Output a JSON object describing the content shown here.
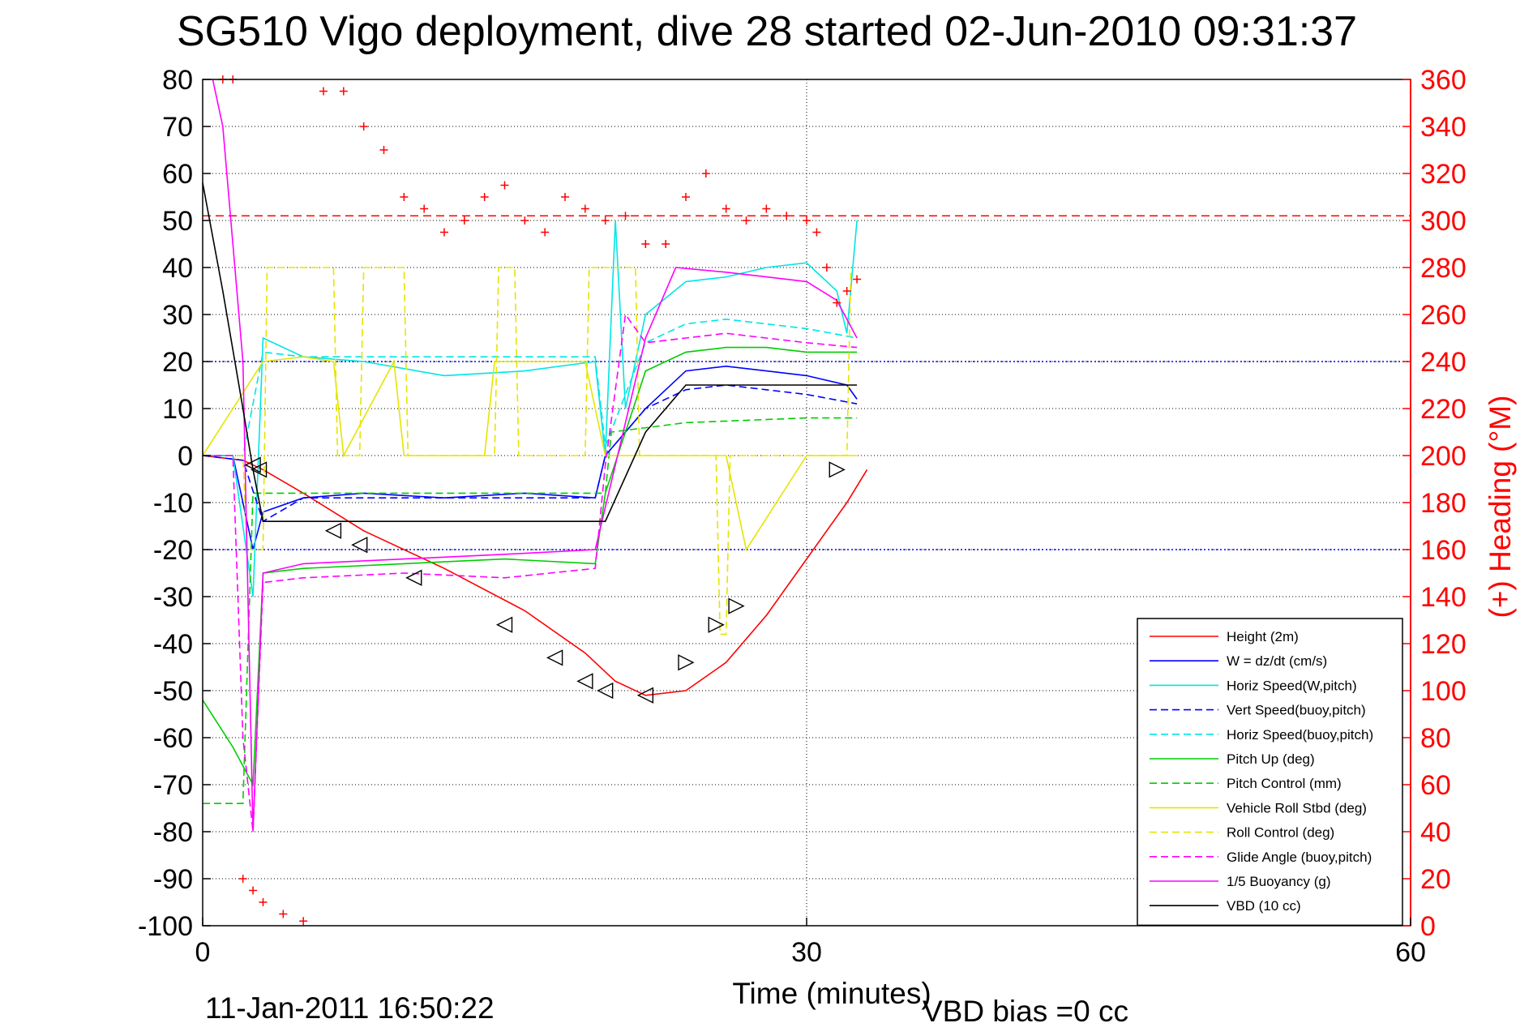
{
  "chart_data": {
    "type": "line",
    "title": "SG510 Vigo deployment, dive 28 started 02-Jun-2010 09:31:37",
    "xlabel": "Time (minutes)",
    "ylabel_right": "(+) Heading (°M)",
    "footer_left": "11-Jan-2011 16:50:22",
    "footer_right": "VBD bias =0 cc",
    "xlim": [
      0,
      60
    ],
    "ylim": [
      -100,
      80
    ],
    "ylim_right": [
      0,
      360
    ],
    "x_ticks": [
      0,
      30,
      60
    ],
    "y_ticks": [
      80,
      70,
      60,
      50,
      40,
      30,
      20,
      10,
      0,
      -10,
      -20,
      -30,
      -40,
      -50,
      -60,
      -70,
      -80,
      -90,
      -100
    ],
    "y_ticks_right": [
      360,
      340,
      320,
      300,
      280,
      260,
      240,
      220,
      200,
      180,
      160,
      140,
      120,
      100,
      80,
      60,
      40,
      20,
      0
    ],
    "grid": true,
    "legend_position": "bottom-right",
    "reference_lines": [
      {
        "axis": "right",
        "value": 302,
        "color": "#ff0000",
        "style": "dashed"
      },
      {
        "axis": "left",
        "value": 20,
        "color": "#0000ff",
        "style": "dotted"
      },
      {
        "axis": "left",
        "value": -20,
        "color": "#0000ff",
        "style": "dotted"
      }
    ],
    "series": [
      {
        "name": "Height (2m)",
        "color": "#ff0000",
        "style": "solid",
        "x": [
          0,
          2,
          3,
          5,
          8,
          12,
          16,
          19,
          20.5,
          22,
          24,
          26,
          28,
          30,
          32,
          33
        ],
        "y": [
          0,
          -1,
          -3,
          -8,
          -16,
          -24,
          -33,
          -42,
          -48,
          -51,
          -50,
          -44,
          -34,
          -22,
          -10,
          -3
        ]
      },
      {
        "name": "W = dz/dt (cm/s)",
        "color": "#0000ff",
        "style": "solid",
        "x": [
          0,
          1.5,
          2.5,
          3,
          5,
          8,
          12,
          16,
          19.5,
          20,
          22,
          24,
          26,
          28,
          30,
          32,
          32.5
        ],
        "y": [
          0,
          0,
          -20,
          -12,
          -9,
          -8,
          -9,
          -8,
          -9,
          0,
          10,
          18,
          19,
          18,
          17,
          15,
          12
        ]
      },
      {
        "name": "Horiz Speed(W,pitch)",
        "color": "#00e5e5",
        "style": "solid",
        "x": [
          0,
          1.5,
          2.5,
          3,
          5,
          8,
          12,
          16,
          19.5,
          20,
          20.5,
          21,
          22,
          24,
          26,
          28,
          30,
          31.5,
          32,
          32.5
        ],
        "y": [
          0,
          0,
          -30,
          25,
          21,
          20,
          17,
          18,
          20,
          0,
          50,
          10,
          30,
          37,
          38,
          40,
          41,
          35,
          26,
          50
        ]
      },
      {
        "name": "Vert Speed(buoy,pitch)",
        "color": "#0000ff",
        "style": "dashed",
        "x": [
          0,
          2,
          3,
          5,
          10,
          15,
          19.5,
          20,
          22,
          24,
          26,
          28,
          30,
          32.5
        ],
        "y": [
          0,
          -1,
          -14,
          -9,
          -9,
          -9,
          -9,
          0,
          10,
          14,
          15,
          14,
          13,
          11
        ]
      },
      {
        "name": "Horiz Speed(buoy,pitch)",
        "color": "#00e5e5",
        "style": "dashed",
        "x": [
          0,
          2,
          3,
          5,
          10,
          15,
          19.5,
          20,
          22,
          24,
          26,
          28,
          30,
          32.5
        ],
        "y": [
          0,
          0,
          22,
          21,
          21,
          21,
          21,
          2,
          24,
          28,
          29,
          28,
          27,
          25
        ]
      },
      {
        "name": "Pitch Up (deg)",
        "color": "#00cc00",
        "style": "solid",
        "x": [
          0,
          1.5,
          2.5,
          3,
          5,
          10,
          15,
          19.5,
          20,
          22,
          24,
          26,
          28,
          30,
          32.5
        ],
        "y": [
          -52,
          -62,
          -70,
          -25,
          -24,
          -23,
          -22,
          -23,
          -8,
          18,
          22,
          23,
          23,
          22,
          22
        ]
      },
      {
        "name": "Pitch Control (mm)",
        "color": "#00cc00",
        "style": "dashed",
        "x": [
          0,
          2,
          2.5,
          3,
          20,
          20.3,
          24,
          30,
          32.5
        ],
        "y": [
          -74,
          -74,
          -8,
          -8,
          -8,
          5,
          7,
          8,
          8
        ]
      },
      {
        "name": "Vehicle Roll Stbd (deg)",
        "color": "#e5e500",
        "style": "solid",
        "x": [
          0,
          1.5,
          3,
          5,
          6.5,
          7,
          9.5,
          10,
          14,
          14.5,
          19,
          20,
          24,
          26,
          27,
          30,
          32.5
        ],
        "y": [
          0,
          10,
          20,
          21,
          20,
          0,
          20,
          0,
          0,
          20,
          20,
          0,
          0,
          0,
          -20,
          0,
          0
        ]
      },
      {
        "name": "Roll Control (deg)",
        "color": "#e5e500",
        "style": "dashed",
        "x": [
          0,
          2,
          2.2,
          3,
          3.2,
          6.5,
          6.7,
          7.8,
          8,
          10,
          10.2,
          14.5,
          14.7,
          15.5,
          15.7,
          19,
          19.2,
          21.5,
          21.7,
          23.5,
          23.7,
          25.5,
          25.7,
          26,
          26.2,
          32,
          32.2
        ],
        "y": [
          0,
          0,
          -20,
          -20,
          40,
          40,
          0,
          0,
          40,
          40,
          0,
          0,
          40,
          40,
          0,
          0,
          40,
          40,
          0,
          0,
          0,
          0,
          -38,
          -38,
          0,
          0,
          40
        ]
      },
      {
        "name": "Glide Angle (buoy,pitch)",
        "color": "#ff00ff",
        "style": "dashed",
        "x": [
          0,
          1.5,
          2,
          2.5,
          3,
          5,
          10,
          15,
          19.5,
          20,
          21,
          22,
          24,
          26,
          28,
          30,
          32.5
        ],
        "y": [
          0,
          0,
          -60,
          -80,
          -27,
          -26,
          -25,
          -26,
          -24,
          -2,
          30,
          24,
          25,
          26,
          25,
          24,
          23
        ]
      },
      {
        "name": "1/5 Buoyancy (g)",
        "color": "#ff00ff",
        "style": "solid",
        "x": [
          0.5,
          1,
          2,
          2.5,
          3,
          5,
          10,
          15,
          19.5,
          22,
          23.5,
          26,
          28,
          30,
          31.5,
          32.5
        ],
        "y": [
          80,
          70,
          20,
          -80,
          -25,
          -23,
          -22,
          -21,
          -20,
          25,
          40,
          39,
          38,
          37,
          33,
          25
        ]
      },
      {
        "name": "VBD (10 cc)",
        "color": "#000000",
        "style": "solid",
        "x": [
          0,
          1,
          2,
          2.5,
          3,
          5,
          10,
          15,
          20,
          22,
          24,
          26,
          30,
          32.5
        ],
        "y": [
          58,
          35,
          10,
          -3,
          -14,
          -14,
          -14,
          -14,
          -14,
          5,
          15,
          15,
          15,
          15
        ]
      },
      {
        "name": "Heading",
        "axis": "right",
        "color": "#ff0000",
        "style": "marker-plus",
        "x": [
          1,
          1.5,
          2,
          2.5,
          3,
          4,
          5,
          6,
          7,
          8,
          9,
          10,
          11,
          12,
          13,
          14,
          15,
          16,
          17,
          18,
          19,
          20,
          21,
          22,
          23,
          24,
          25,
          26,
          27,
          28,
          29,
          30,
          30.5,
          31,
          31.5,
          32,
          32.5
        ],
        "y": [
          360,
          360,
          20,
          15,
          10,
          5,
          2,
          355,
          355,
          340,
          330,
          310,
          305,
          295,
          300,
          310,
          315,
          300,
          295,
          310,
          305,
          300,
          302,
          290,
          290,
          310,
          320,
          305,
          300,
          305,
          302,
          300,
          295,
          280,
          265,
          270,
          275
        ]
      }
    ],
    "triangle_markers": [
      {
        "x": 2.5,
        "y": -2,
        "dir": "left"
      },
      {
        "x": 2.8,
        "y": -3,
        "dir": "left"
      },
      {
        "x": 6.5,
        "y": -16,
        "dir": "left"
      },
      {
        "x": 7.8,
        "y": -19,
        "dir": "left"
      },
      {
        "x": 10.5,
        "y": -26,
        "dir": "left"
      },
      {
        "x": 15,
        "y": -36,
        "dir": "left"
      },
      {
        "x": 17.5,
        "y": -43,
        "dir": "left"
      },
      {
        "x": 19,
        "y": -48,
        "dir": "left"
      },
      {
        "x": 20,
        "y": -50,
        "dir": "left"
      },
      {
        "x": 22,
        "y": -51,
        "dir": "left"
      },
      {
        "x": 24,
        "y": -44,
        "dir": "right"
      },
      {
        "x": 25.5,
        "y": -36,
        "dir": "right"
      },
      {
        "x": 26.5,
        "y": -32,
        "dir": "right"
      },
      {
        "x": 31.5,
        "y": -3,
        "dir": "right"
      }
    ]
  }
}
